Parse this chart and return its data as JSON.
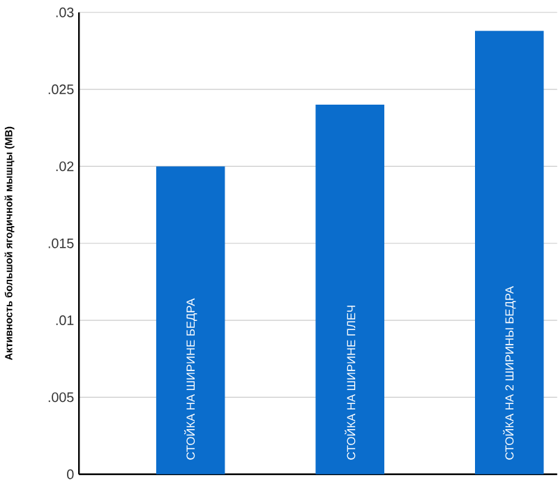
{
  "chart_data": {
    "type": "bar",
    "ylabel": "Активность большой ягодичной мышцы (МВ)",
    "categories": [
      "СТОЙКА НА ШИРИНЕ БЕДРА",
      "СТОЙКА НА ШИРИНЕ ПЛЕЧ",
      "СТОЙКА НА 2 ШИРИНЫ БЕДРА"
    ],
    "values": [
      0.02,
      0.024,
      0.0288
    ],
    "color": "#0b6dcc",
    "ylim": [
      0,
      0.03
    ],
    "yticks": [
      {
        "value": 0,
        "label": "0"
      },
      {
        "value": 0.005,
        "label": ".005"
      },
      {
        "value": 0.01,
        "label": ".01"
      },
      {
        "value": 0.015,
        "label": ".015"
      },
      {
        "value": 0.02,
        "label": ".02"
      },
      {
        "value": 0.025,
        "label": ".025"
      },
      {
        "value": 0.03,
        "label": ".03"
      }
    ],
    "grid": "y"
  }
}
